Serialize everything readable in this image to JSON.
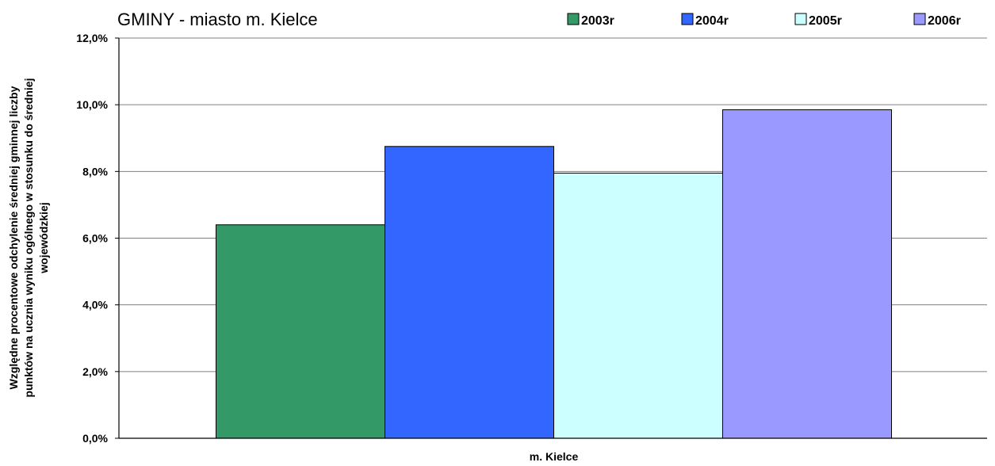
{
  "chart_data": {
    "type": "bar",
    "title": "GMINY -  miasto m. Kielce",
    "categories": [
      "m. Kielce"
    ],
    "series": [
      {
        "name": "2003r",
        "values": [
          6.4
        ],
        "color": "#339966",
        "legend_color": "#339966"
      },
      {
        "name": "2004r",
        "values": [
          8.75
        ],
        "color": "#3366FF",
        "legend_color": "#3366FF"
      },
      {
        "name": "2005r",
        "values": [
          7.95
        ],
        "color": "#CCFFFF",
        "legend_color": "#CCFFFF"
      },
      {
        "name": "2006r",
        "values": [
          9.85
        ],
        "color": "#9999FF",
        "legend_color": "#9999FF"
      }
    ],
    "ylabel_lines": [
      "Względne procentowe odchylenie średniej gminnej liczby",
      "punktów na ucznia wyniku ogólnego w stosunku do średniej",
      "wojewódzkiej"
    ],
    "xlabel": "",
    "ylim": [
      0,
      12
    ],
    "yticks": [
      0,
      2,
      4,
      6,
      8,
      10,
      12
    ],
    "ytick_labels": [
      "0,0%",
      "2,0%",
      "4,0%",
      "6,0%",
      "8,0%",
      "10,0%",
      "12,0%"
    ],
    "grid": true,
    "legend_position": "top-right"
  }
}
